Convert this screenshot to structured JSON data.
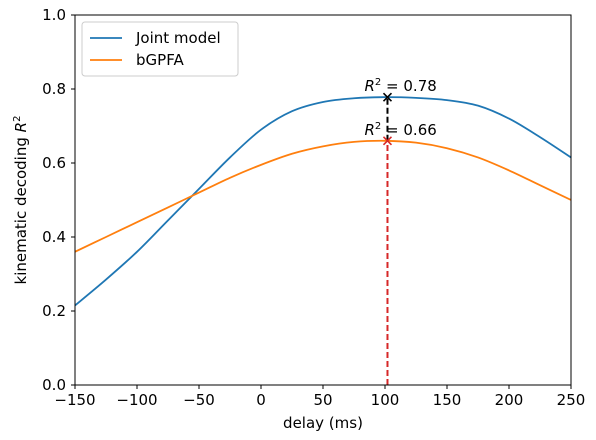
{
  "chart_data": {
    "type": "line",
    "xlabel": "delay (ms)",
    "ylabel": "kinematic decoding R²",
    "xlim": [
      -150,
      250
    ],
    "ylim": [
      0.0,
      1.0
    ],
    "xticks": [
      -150,
      -100,
      -50,
      0,
      50,
      100,
      150,
      200,
      250
    ],
    "yticks": [
      0.0,
      0.2,
      0.4,
      0.6,
      0.8,
      1.0
    ],
    "xtick_labels": [
      "−150",
      "−100",
      "−50",
      "0",
      "50",
      "100",
      "150",
      "200",
      "250"
    ],
    "ytick_labels": [
      "0.0",
      "0.2",
      "0.4",
      "0.6",
      "0.8",
      "1.0"
    ],
    "grid": false,
    "legend_position": "top-left",
    "series": [
      {
        "name": "Joint model",
        "color": "#1f77b4",
        "x": [
          -150,
          -125,
          -100,
          -75,
          -50,
          -25,
          0,
          25,
          50,
          75,
          100,
          125,
          150,
          175,
          200,
          225,
          250
        ],
        "y": [
          0.215,
          0.285,
          0.36,
          0.445,
          0.53,
          0.615,
          0.69,
          0.74,
          0.765,
          0.775,
          0.778,
          0.776,
          0.77,
          0.755,
          0.72,
          0.67,
          0.615
        ]
      },
      {
        "name": "bGPFA",
        "color": "#ff7f0e",
        "x": [
          -150,
          -125,
          -100,
          -75,
          -50,
          -25,
          0,
          25,
          50,
          75,
          100,
          125,
          150,
          175,
          200,
          225,
          250
        ],
        "y": [
          0.36,
          0.4,
          0.44,
          0.48,
          0.52,
          0.56,
          0.595,
          0.625,
          0.645,
          0.657,
          0.66,
          0.655,
          0.64,
          0.615,
          0.58,
          0.54,
          0.5
        ]
      }
    ],
    "annotations": [
      {
        "text_prefix": "R",
        "text_sup": "2",
        "text_suffix": " = 0.78",
        "x": 102,
        "y": 0.778,
        "marker_color": "#000000"
      },
      {
        "text_prefix": "R",
        "text_sup": "2",
        "text_suffix": " = 0.66",
        "x": 102,
        "y": 0.66,
        "marker_color": "#d62728"
      }
    ],
    "guide_lines": [
      {
        "x": 102,
        "y_from": 0.0,
        "y_to": 0.66,
        "color": "#d62728",
        "style": "dashed"
      },
      {
        "x": 102,
        "y_from": 0.66,
        "y_to": 0.778,
        "color": "#000000",
        "style": "dashed"
      }
    ]
  }
}
